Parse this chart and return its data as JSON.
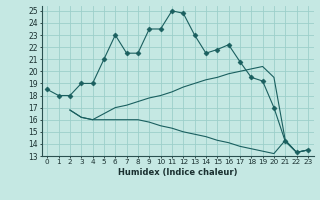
{
  "xlabel": "Humidex (Indice chaleur)",
  "ylabel": "",
  "background_color": "#c5e8e3",
  "grid_color": "#9dcfca",
  "line_color": "#1a5f5f",
  "xlim": [
    -0.5,
    23.5
  ],
  "ylim": [
    13,
    25.4
  ],
  "yticks": [
    13,
    14,
    15,
    16,
    17,
    18,
    19,
    20,
    21,
    22,
    23,
    24,
    25
  ],
  "xticks": [
    0,
    1,
    2,
    3,
    4,
    5,
    6,
    7,
    8,
    9,
    10,
    11,
    12,
    13,
    14,
    15,
    16,
    17,
    18,
    19,
    20,
    21,
    22,
    23
  ],
  "series": [
    {
      "x": [
        0,
        1,
        2,
        3,
        4,
        5,
        6,
        7,
        8,
        9,
        10,
        11,
        12,
        13,
        14,
        15,
        16,
        17,
        18,
        19,
        20,
        21,
        22,
        23
      ],
      "y": [
        18.5,
        18.0,
        18.0,
        19.0,
        19.0,
        21.0,
        23.0,
        21.5,
        21.5,
        23.5,
        23.5,
        25.0,
        24.8,
        23.0,
        21.5,
        21.8,
        22.2,
        20.8,
        19.5,
        19.2,
        17.0,
        14.2,
        13.3,
        13.5
      ],
      "marker": "D",
      "markersize": 2.5
    },
    {
      "x": [
        2,
        3,
        4,
        5,
        6,
        7,
        8,
        9,
        10,
        11,
        12,
        13,
        14,
        15,
        16,
        17,
        18,
        19,
        20,
        21,
        22,
        23
      ],
      "y": [
        16.8,
        16.2,
        16.0,
        16.5,
        17.0,
        17.2,
        17.5,
        17.8,
        18.0,
        18.3,
        18.7,
        19.0,
        19.3,
        19.5,
        19.8,
        20.0,
        20.2,
        20.4,
        19.5,
        14.3,
        13.3,
        13.5
      ],
      "marker": null,
      "markersize": 0
    },
    {
      "x": [
        2,
        3,
        4,
        5,
        6,
        7,
        8,
        9,
        10,
        11,
        12,
        13,
        14,
        15,
        16,
        17,
        18,
        19,
        20,
        21,
        22,
        23
      ],
      "y": [
        16.8,
        16.2,
        16.0,
        16.0,
        16.0,
        16.0,
        16.0,
        15.8,
        15.5,
        15.3,
        15.0,
        14.8,
        14.6,
        14.3,
        14.1,
        13.8,
        13.6,
        13.4,
        13.2,
        14.3,
        13.3,
        13.5
      ],
      "marker": null,
      "markersize": 0
    }
  ],
  "xlabel_fontsize": 6.0,
  "tick_fontsize": 5.2,
  "ytick_fontsize": 5.5
}
